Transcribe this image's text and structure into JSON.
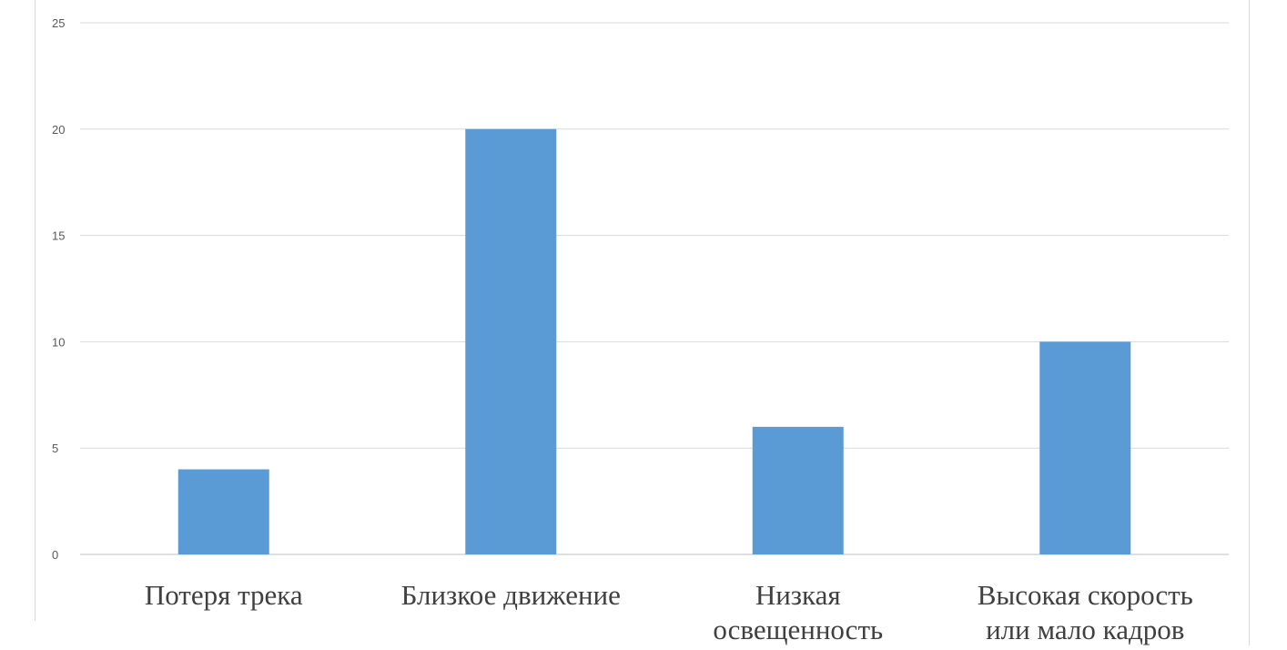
{
  "chart_data": {
    "type": "bar",
    "categories": [
      [
        "Потеря трека"
      ],
      [
        "Близкое движение"
      ],
      [
        "Низкая",
        "освещенность"
      ],
      [
        "Высокая скорость",
        "или мало кадров"
      ]
    ],
    "values": [
      4,
      20,
      6,
      10
    ],
    "ylim": [
      0,
      25
    ],
    "yticks": [
      0,
      5,
      10,
      15,
      20,
      25
    ],
    "grid": true,
    "colors": {
      "bar": "#5b9bd5",
      "grid": "#d9d9d9",
      "axis": "#bfbfbf"
    }
  }
}
